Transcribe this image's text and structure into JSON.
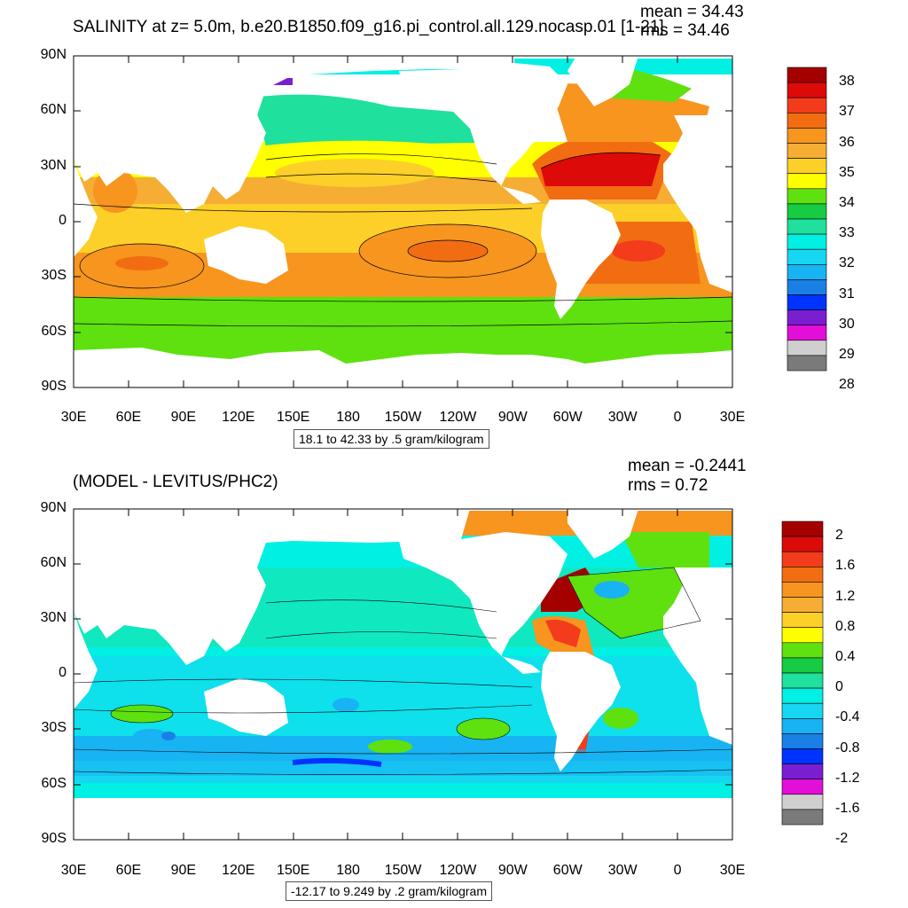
{
  "panel1": {
    "title": "SALINITY at z=   5.0m, b.e20.B1850.f09_g16.pi_control.all.129.nocasp.01 [1-21]",
    "mean": "mean = 34.43",
    "rms": "rms = 34.46",
    "info": "18.1 to 42.33 by .5 gram/kilogram",
    "lat_labels": [
      "90N",
      "60N",
      "30N",
      "0",
      "30S",
      "60S",
      "90S"
    ],
    "lon_labels": [
      "30E",
      "60E",
      "90E",
      "120E",
      "150E",
      "180",
      "150W",
      "120W",
      "90W",
      "60W",
      "30W",
      "0",
      "30E"
    ],
    "colorbar": {
      "labels": [
        "38",
        "37",
        "36",
        "35",
        "34",
        "33",
        "32",
        "31",
        "30",
        "29",
        "28"
      ],
      "colors": [
        "#a50000",
        "#dd0a0a",
        "#f23c1c",
        "#f26d12",
        "#f7951f",
        "#f5ad33",
        "#fcd028",
        "#ffff00",
        "#5ee10f",
        "#17cc42",
        "#1fe09c",
        "#00f0e4",
        "#17d6f2",
        "#18b3f2",
        "#1b80e6",
        "#0033ff",
        "#7a1ed2",
        "#e20fd8",
        "#cfcfcf",
        "#7a7a7a"
      ]
    }
  },
  "panel2": {
    "title": "(MODEL - LEVITUS/PHC2)",
    "mean": "mean = -0.2441",
    "rms": "rms = 0.72",
    "info": "-12.17 to 9.249 by .2 gram/kilogram",
    "lat_labels": [
      "90N",
      "60N",
      "30N",
      "0",
      "30S",
      "60S",
      "90S"
    ],
    "lon_labels": [
      "30E",
      "60E",
      "90E",
      "120E",
      "150E",
      "180",
      "150W",
      "120W",
      "90W",
      "60W",
      "30W",
      "0",
      "30E"
    ],
    "colorbar": {
      "labels": [
        "2",
        "1.6",
        "1.2",
        "0.8",
        "0.4",
        "0",
        "-0.4",
        "-0.8",
        "-1.2",
        "-1.6",
        "-2"
      ],
      "colors": [
        "#a50000",
        "#dd0a0a",
        "#f23c1c",
        "#f26d12",
        "#f7951f",
        "#f5ad33",
        "#fcd028",
        "#ffff00",
        "#5ee10f",
        "#17cc42",
        "#1fe09c",
        "#00f0e4",
        "#17d6f2",
        "#18b3f2",
        "#1b80e6",
        "#0033ff",
        "#7a1ed2",
        "#e20fd8",
        "#cfcfcf",
        "#7a7a7a"
      ]
    }
  }
}
